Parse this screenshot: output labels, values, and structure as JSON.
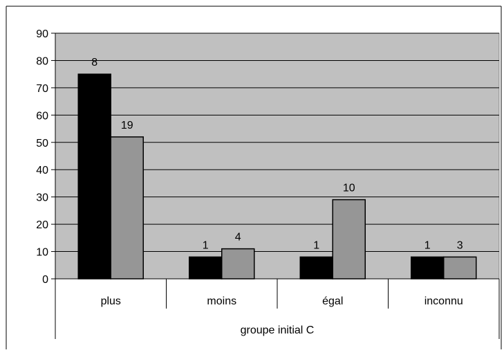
{
  "chart_data": {
    "type": "bar",
    "categories": [
      "plus",
      "moins",
      "égal",
      "inconnu"
    ],
    "group_label": "groupe initial C",
    "series": [
      {
        "values": [
          75,
          8,
          8,
          8
        ],
        "data_labels": [
          "8",
          "1",
          "1",
          "1"
        ],
        "color": "#000000"
      },
      {
        "values": [
          52,
          11,
          29,
          8
        ],
        "data_labels": [
          "19",
          "4",
          "10",
          "3"
        ],
        "color": "#969696"
      }
    ],
    "y_ticks": [
      "0",
      "10",
      "20",
      "30",
      "40",
      "50",
      "60",
      "70",
      "80",
      "90"
    ],
    "ylim": [
      0,
      90
    ],
    "grid": true,
    "plot_background": "#c0c0c0",
    "legend": "none"
  }
}
